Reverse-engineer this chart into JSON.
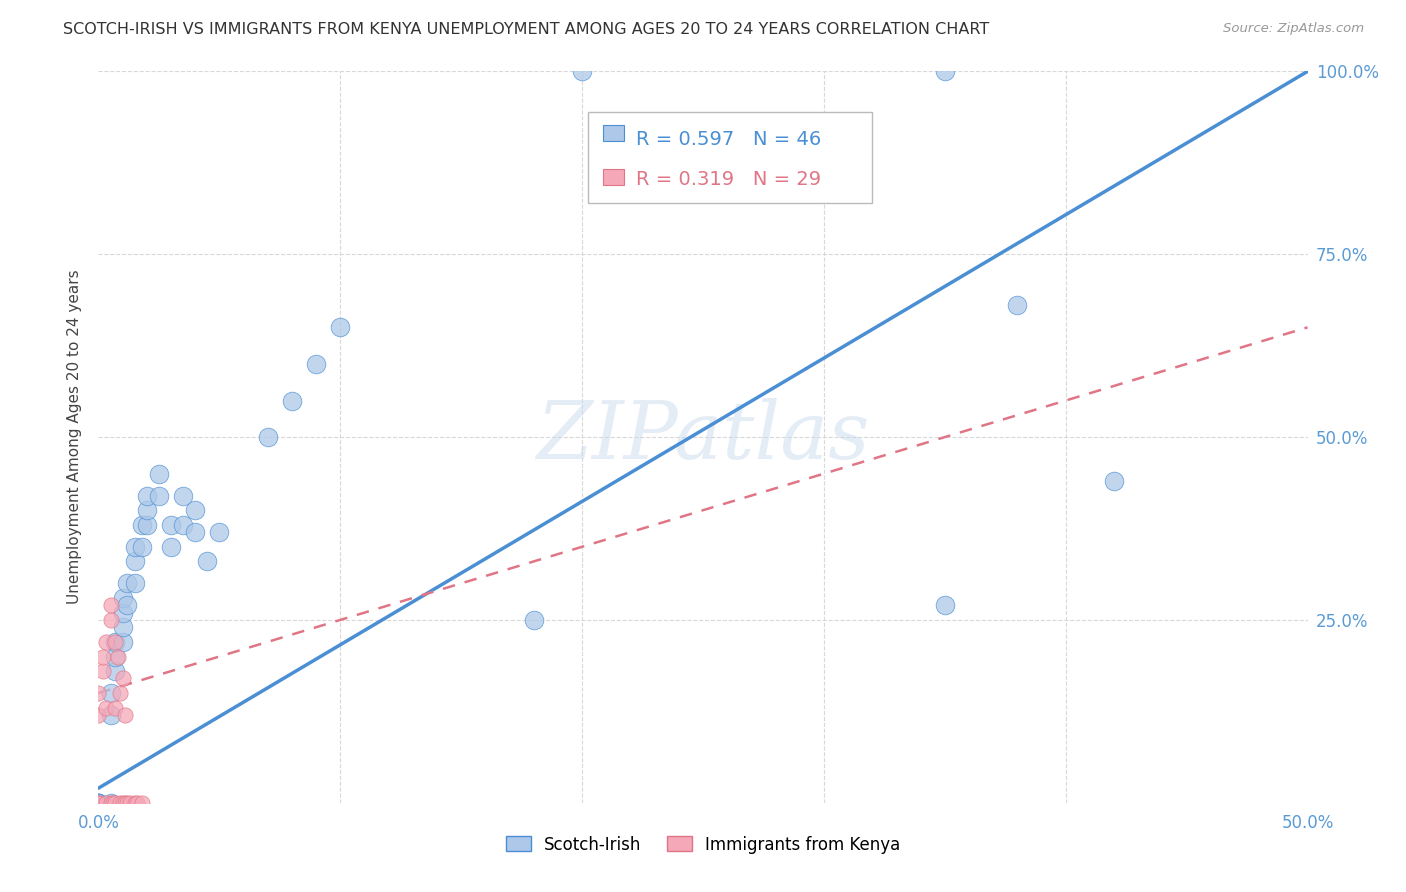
{
  "title": "SCOTCH-IRISH VS IMMIGRANTS FROM KENYA UNEMPLOYMENT AMONG AGES 20 TO 24 YEARS CORRELATION CHART",
  "source": "Source: ZipAtlas.com",
  "ylabel": "Unemployment Among Ages 20 to 24 years",
  "xlim": [
    0,
    0.5
  ],
  "ylim": [
    0,
    1.0
  ],
  "scotch_irish_R": 0.597,
  "scotch_irish_N": 46,
  "kenya_R": 0.319,
  "kenya_N": 29,
  "scotch_irish_color": "#adc8e8",
  "kenya_color": "#f5a8b8",
  "trend_scotch_color": "#4a8fd4",
  "trend_kenya_color": "#e07585",
  "watermark": "ZIPatlas",
  "scotch_irish_x": [
    0.0,
    0.0,
    0.0,
    0.0,
    0.0,
    0.0,
    0.005,
    0.005,
    0.005,
    0.007,
    0.007,
    0.007,
    0.01,
    0.01,
    0.01,
    0.01,
    0.012,
    0.012,
    0.015,
    0.015,
    0.015,
    0.018,
    0.018,
    0.02,
    0.02,
    0.02,
    0.025,
    0.025,
    0.03,
    0.03,
    0.035,
    0.035,
    0.04,
    0.04,
    0.045,
    0.05,
    0.07,
    0.08,
    0.09,
    0.1,
    0.18,
    0.2,
    0.35,
    0.35,
    0.38,
    0.42
  ],
  "scotch_irish_y": [
    0.0,
    0.0,
    0.0,
    0.0,
    0.0,
    0.0,
    0.0,
    0.12,
    0.15,
    0.18,
    0.2,
    0.22,
    0.22,
    0.24,
    0.26,
    0.28,
    0.27,
    0.3,
    0.3,
    0.33,
    0.35,
    0.35,
    0.38,
    0.38,
    0.4,
    0.42,
    0.42,
    0.45,
    0.35,
    0.38,
    0.38,
    0.42,
    0.37,
    0.4,
    0.33,
    0.37,
    0.5,
    0.55,
    0.6,
    0.65,
    0.25,
    1.0,
    0.27,
    1.0,
    0.68,
    0.44
  ],
  "kenya_x": [
    0.0,
    0.0,
    0.0,
    0.0,
    0.0,
    0.002,
    0.002,
    0.003,
    0.003,
    0.003,
    0.005,
    0.005,
    0.005,
    0.006,
    0.007,
    0.007,
    0.007,
    0.008,
    0.009,
    0.009,
    0.01,
    0.01,
    0.011,
    0.011,
    0.012,
    0.013,
    0.015,
    0.016,
    0.018
  ],
  "kenya_y": [
    0.0,
    0.0,
    0.0,
    0.12,
    0.15,
    0.18,
    0.2,
    0.22,
    0.0,
    0.13,
    0.25,
    0.27,
    0.0,
    0.0,
    0.0,
    0.13,
    0.22,
    0.2,
    0.0,
    0.15,
    0.0,
    0.17,
    0.12,
    0.0,
    0.0,
    0.0,
    0.0,
    0.0,
    0.0
  ],
  "background_color": "#ffffff",
  "grid_color": "#d8d8d8"
}
